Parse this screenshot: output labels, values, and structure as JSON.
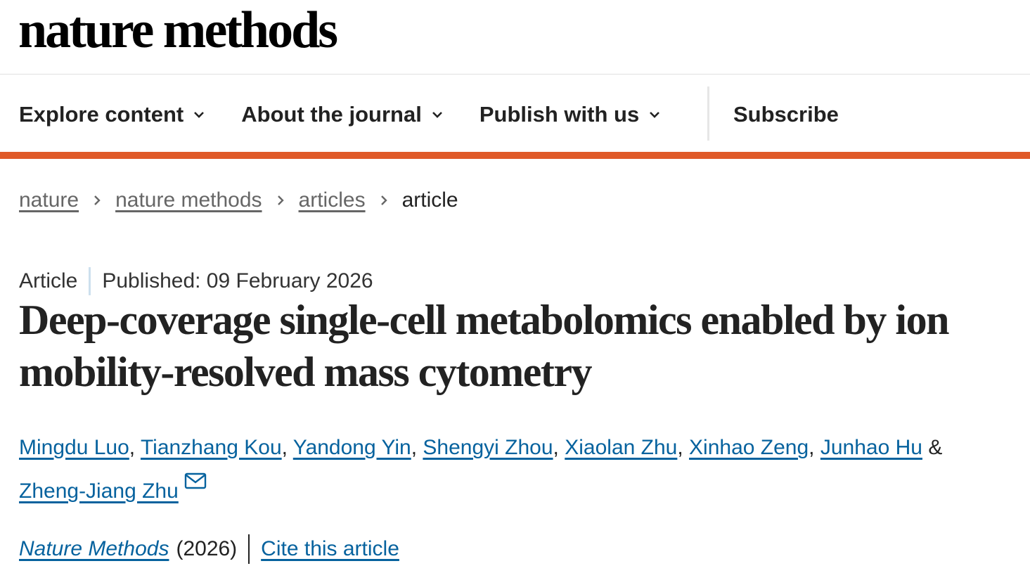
{
  "header": {
    "logo": "nature methods"
  },
  "nav": {
    "items": [
      "Explore content",
      "About the journal",
      "Publish with us"
    ],
    "subscribe": "Subscribe"
  },
  "breadcrumbs": {
    "links": [
      "nature",
      "nature methods",
      "articles"
    ],
    "current": "article"
  },
  "article": {
    "type": "Article",
    "published": "Published: 09 February 2026",
    "title": "Deep-coverage single-cell metabolomics enabled by ion mobility-resolved mass cytometry",
    "authors": [
      "Mingdu Luo",
      "Tianzhang Kou",
      "Yandong Yin",
      "Shengyi Zhou",
      "Xiaolan Zhu",
      "Xinhao Zeng",
      "Junhao Hu",
      "Zheng-Jiang Zhu"
    ],
    "author_separator": ",",
    "last_separator": "&",
    "journal": "Nature Methods",
    "year": "(2026)",
    "cite": "Cite this article"
  }
}
